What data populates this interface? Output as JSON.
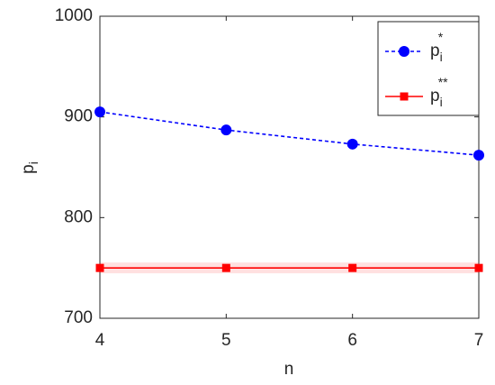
{
  "chart_data": {
    "type": "line",
    "xlabel": "n",
    "ylabel": "p",
    "ylabel_subscript": "i",
    "x": [
      4,
      5,
      6,
      7
    ],
    "series": [
      {
        "name": "p",
        "subscript": "i",
        "superscript": "*",
        "color": "#0000ff",
        "dash": true,
        "marker": "circle",
        "values": [
          905,
          887,
          873,
          862
        ]
      },
      {
        "name": "p",
        "subscript": "i",
        "superscript": "**",
        "color": "#ff0000",
        "dash": false,
        "marker": "square",
        "values": [
          750,
          750,
          750,
          750
        ]
      }
    ],
    "xlim": [
      4,
      7
    ],
    "xticks": [
      4,
      5,
      6,
      7
    ],
    "ylim": [
      700,
      1000
    ],
    "yticks": [
      700,
      800,
      900,
      1000
    ],
    "grid": false,
    "legend": "upper right"
  }
}
